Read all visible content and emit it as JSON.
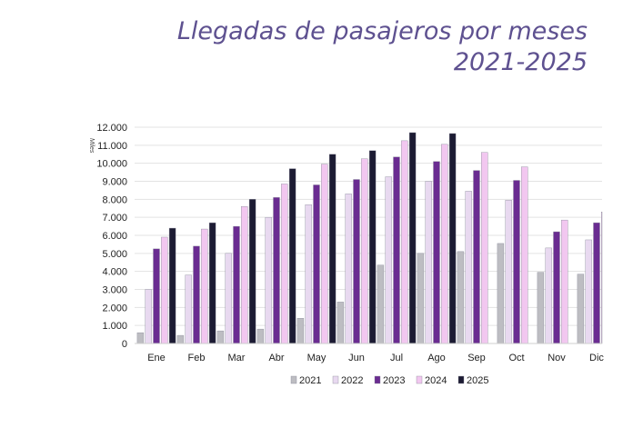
{
  "title_line1": "Llegadas de pasajeros por meses",
  "title_line2": "2021-2025",
  "chart_data": {
    "type": "bar",
    "title": "Llegadas de pasajeros por meses 2021-2025",
    "ylabel": "Miles",
    "xlabel": "",
    "ylim": [
      0,
      12000
    ],
    "yticks": [
      "0",
      "1.000",
      "2.000",
      "3.000",
      "4.000",
      "5.000",
      "6.000",
      "7.000",
      "8.000",
      "9.000",
      "10.000",
      "11.000",
      "12.000"
    ],
    "grid": true,
    "legend_position": "bottom",
    "categories": [
      "Ene",
      "Feb",
      "Mar",
      "Abr",
      "May",
      "Jun",
      "Jul",
      "Ago",
      "Sep",
      "Oct",
      "Nov",
      "Dic"
    ],
    "series": [
      {
        "name": "2021",
        "color": "#bdbdc2",
        "values": [
          600,
          450,
          700,
          800,
          1400,
          2300,
          4350,
          5000,
          5100,
          5550,
          3950,
          3850
        ]
      },
      {
        "name": "2022",
        "color": "#e8d9f0",
        "values": [
          3000,
          3800,
          5000,
          7000,
          7700,
          8300,
          9250,
          9000,
          8450,
          7950,
          5300,
          5750
        ]
      },
      {
        "name": "2023",
        "color": "#6a2c91",
        "values": [
          5250,
          5400,
          6500,
          8100,
          8800,
          9100,
          10350,
          10100,
          9600,
          9050,
          6200,
          6700
        ]
      },
      {
        "name": "2024",
        "color": "#f2c7f0",
        "values": [
          5900,
          6350,
          7600,
          8850,
          9950,
          10250,
          11250,
          11050,
          10600,
          9800,
          6850,
          7300
        ]
      },
      {
        "name": "2025",
        "color": "#1c1b33",
        "values": [
          6400,
          6700,
          8000,
          9700,
          10500,
          10700,
          11700,
          11650,
          null,
          null,
          null,
          null
        ]
      }
    ]
  }
}
